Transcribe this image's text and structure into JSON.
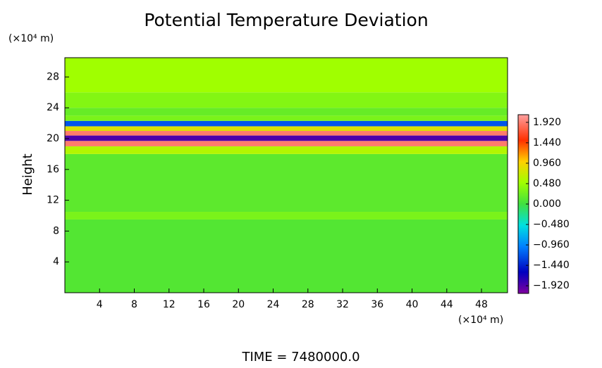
{
  "chart_data": {
    "type": "heatmap",
    "title": "Potential Temperature Deviation",
    "y_label": "Height",
    "y_unit": "(×10⁴ m)",
    "x_unit": "(×10⁴ m)",
    "footer": "TIME = 7480000.0",
    "xlim": [
      0,
      51
    ],
    "xticks": [
      4,
      8,
      12,
      16,
      20,
      24,
      28,
      32,
      36,
      40,
      44,
      48
    ],
    "ylim": [
      0,
      30.5
    ],
    "yticks": [
      4,
      8,
      12,
      16,
      20,
      24,
      28
    ],
    "y_bins": [
      0,
      9.5,
      10.5,
      18,
      19,
      19.7,
      20.4,
      21,
      21.6,
      22.3,
      23,
      24,
      26,
      30.5
    ],
    "values": [
      0.1,
      0.3,
      0.15,
      0.6,
      1.9,
      -1.9,
      1.9,
      0.8,
      -1.2,
      0.3,
      0.2,
      0.35,
      0.5
    ],
    "clim": [
      -2.1,
      2.1
    ],
    "cticks": [
      {
        "value": 1.92,
        "label": "1.920"
      },
      {
        "value": 1.44,
        "label": "1.440"
      },
      {
        "value": 0.96,
        "label": "0.960"
      },
      {
        "value": 0.48,
        "label": "0.480"
      },
      {
        "value": 0,
        "label": "0.000"
      },
      {
        "value": -0.48,
        "label": "−0.480"
      },
      {
        "value": -0.96,
        "label": "−0.960"
      },
      {
        "value": -1.44,
        "label": "−1.440"
      },
      {
        "value": -1.92,
        "label": "−1.920"
      }
    ],
    "colorscale": [
      [
        -2.1,
        "#80009f"
      ],
      [
        -1.6,
        "#0000c0"
      ],
      [
        -1.0,
        "#0080ff"
      ],
      [
        -0.5,
        "#00e0e0"
      ],
      [
        0,
        "#40e040"
      ],
      [
        0.5,
        "#a0ff00"
      ],
      [
        1.0,
        "#ffd000"
      ],
      [
        1.5,
        "#ff3000"
      ],
      [
        2.1,
        "#ffa0a0"
      ]
    ]
  }
}
